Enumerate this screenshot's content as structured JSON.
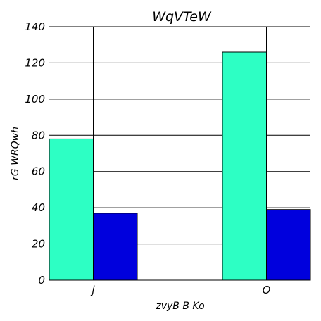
{
  "chart_data": {
    "type": "bar",
    "title": "WqVTeW",
    "xlabel": "zvyB B Ko",
    "ylabel": "rG WRQwh",
    "categories": [
      "j",
      "O"
    ],
    "series": [
      {
        "values": [
          78,
          126
        ],
        "color": "#2dffc4"
      },
      {
        "values": [
          37,
          39
        ],
        "color": "#0000dd"
      }
    ],
    "ylim": [
      0,
      140
    ],
    "yticks": [
      0,
      20,
      40,
      60,
      80,
      100,
      120,
      140
    ],
    "grid": "horizontal and vertical at category positions",
    "legend": "none"
  }
}
